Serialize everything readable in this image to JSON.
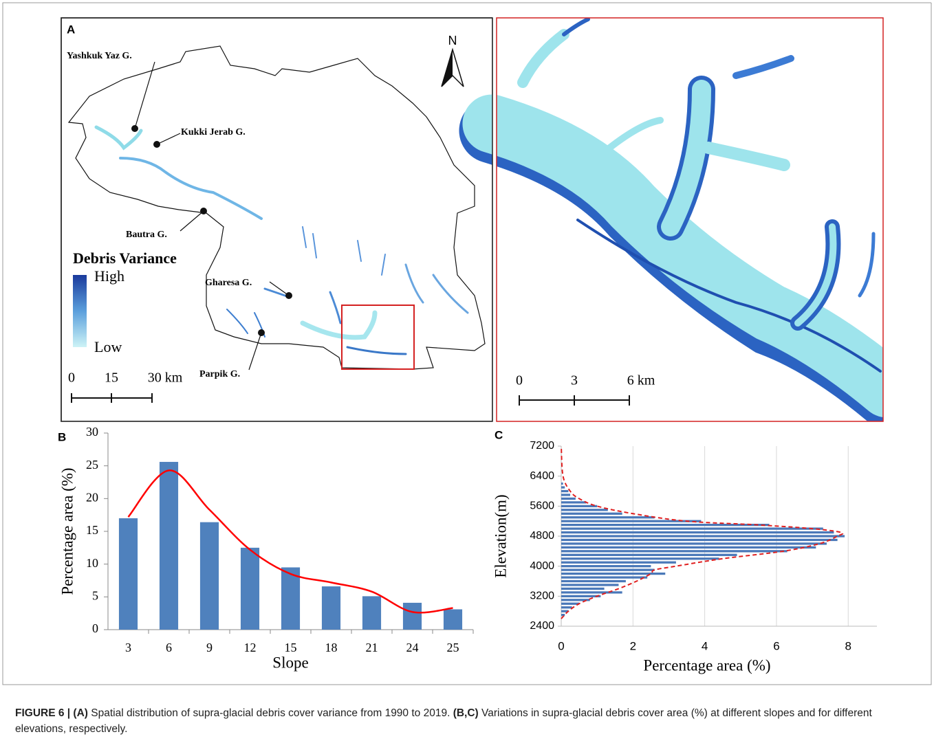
{
  "panel_a": {
    "label": "A",
    "north": "N",
    "legend_title": "Debris Variance",
    "legend_high": "High",
    "legend_low": "Low",
    "glaciers": [
      "Yashkuk Yaz G.",
      "Kukki Jerab G.",
      "Bautra G.",
      "Gharesa G.",
      "Parpik G."
    ],
    "scale_labels": [
      "0",
      "15",
      "30 km"
    ]
  },
  "panel_zoom": {
    "scale_labels": [
      "0",
      "3",
      "6 km"
    ]
  },
  "chart_data": [
    {
      "type": "bar",
      "panel_label": "B",
      "xlabel": "Slope",
      "ylabel": "Percentage area (%)",
      "categories": [
        "3",
        "6",
        "9",
        "12",
        "15",
        "18",
        "21",
        "24",
        "25"
      ],
      "values": [
        17,
        25.6,
        16.4,
        12.5,
        9.5,
        6.6,
        5.1,
        4.1,
        3.1
      ],
      "color": "#4f81bd",
      "trend": {
        "color": "#ff0000",
        "dashed": false,
        "values": [
          17.2,
          24.3,
          18.3,
          12.2,
          8.5,
          7.2,
          5.8,
          2.7,
          3.3
        ]
      },
      "ylim": [
        0,
        30
      ],
      "yticks": [
        0,
        5,
        10,
        15,
        20,
        25,
        30
      ],
      "grid": false
    },
    {
      "type": "hbar",
      "panel_label": "C",
      "xlabel": "Percentage area (%)",
      "ylabel": "Elevation(m)",
      "y": [
        2700,
        2800,
        2900,
        3000,
        3100,
        3200,
        3300,
        3400,
        3500,
        3600,
        3700,
        3800,
        3900,
        4000,
        4100,
        4200,
        4300,
        4400,
        4500,
        4600,
        4700,
        4800,
        4900,
        5000,
        5100,
        5200,
        5300,
        5400,
        5500,
        5600,
        5700,
        5800,
        5900,
        6000,
        6100,
        6200
      ],
      "values": [
        0.1,
        0.2,
        0.3,
        0.5,
        0.8,
        1.1,
        1.7,
        1.2,
        1.6,
        1.8,
        2.4,
        2.9,
        2.6,
        2.5,
        3.2,
        4.4,
        4.9,
        6.3,
        7.1,
        7.4,
        7.7,
        7.9,
        7.6,
        7.3,
        5.8,
        3.9,
        2.6,
        1.7,
        1.3,
        1.0,
        0.7,
        0.4,
        0.25,
        0.2,
        0.1,
        0.05
      ],
      "color": "#4a78b8",
      "trend": {
        "color": "#e02020",
        "dashed": true,
        "y": [
          2600,
          2800,
          3000,
          3200,
          3400,
          3600,
          3800,
          3900,
          4000,
          4200,
          4400,
          4600,
          4800,
          4900,
          5000,
          5100,
          5200,
          5400,
          5600,
          5800,
          6000,
          6400,
          7200
        ],
        "values": [
          0,
          0.2,
          0.5,
          1.0,
          1.6,
          2.1,
          2.5,
          2.6,
          3.2,
          4.5,
          6.2,
          7.2,
          7.7,
          7.8,
          7.0,
          5.5,
          3.5,
          2.0,
          1.0,
          0.5,
          0.25,
          0.05,
          0
        ]
      },
      "xlim": [
        0,
        8.8
      ],
      "xticks": [
        0,
        2,
        4,
        6,
        8
      ],
      "ylim": [
        2400,
        7200
      ],
      "yticks": [
        2400,
        3200,
        4000,
        4800,
        5600,
        6400,
        7200
      ],
      "grid": true
    }
  ],
  "caption": [
    "FIGURE 6 | (A)",
    " Spatial distribution of supra-glacial debris cover variance from 1990 to 2019. ",
    "(B,C)",
    " Variations in supra-glacial debris cover area (%) at different slopes and for different elevations, respectively."
  ]
}
